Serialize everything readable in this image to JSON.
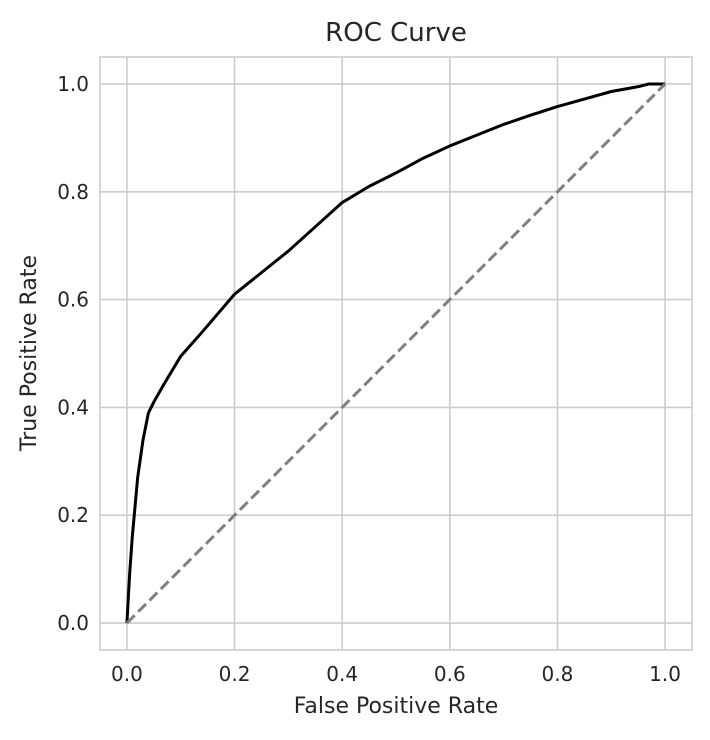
{
  "chart_data": {
    "type": "line",
    "title": "ROC Curve",
    "xlabel": "False Positive Rate",
    "ylabel": "True Positive Rate",
    "xlim": [
      -0.05,
      1.05
    ],
    "ylim": [
      -0.05,
      1.05
    ],
    "xticks": [
      0.0,
      0.2,
      0.4,
      0.6,
      0.8,
      1.0
    ],
    "yticks": [
      0.0,
      0.2,
      0.4,
      0.6,
      0.8,
      1.0
    ],
    "tick_labels_x": [
      "0.0",
      "0.2",
      "0.4",
      "0.6",
      "0.8",
      "1.0"
    ],
    "tick_labels_y": [
      "0.0",
      "0.2",
      "0.4",
      "0.6",
      "0.8",
      "1.0"
    ],
    "grid": true,
    "series": [
      {
        "style": "solid",
        "color": "#000000",
        "x": [
          0.0,
          0.005,
          0.01,
          0.02,
          0.03,
          0.04,
          0.05,
          0.07,
          0.1,
          0.14,
          0.2,
          0.25,
          0.3,
          0.35,
          0.4,
          0.45,
          0.5,
          0.55,
          0.6,
          0.65,
          0.7,
          0.75,
          0.8,
          0.85,
          0.9,
          0.95,
          0.97,
          1.0
        ],
        "y": [
          0.0,
          0.09,
          0.16,
          0.27,
          0.34,
          0.39,
          0.41,
          0.445,
          0.495,
          0.54,
          0.61,
          0.65,
          0.69,
          0.735,
          0.78,
          0.81,
          0.835,
          0.862,
          0.885,
          0.905,
          0.925,
          0.942,
          0.958,
          0.972,
          0.986,
          0.995,
          1.0,
          1.0
        ]
      },
      {
        "style": "dashed",
        "color": "#808080",
        "x": [
          0.0,
          1.0
        ],
        "y": [
          0.0,
          1.0
        ]
      }
    ]
  }
}
